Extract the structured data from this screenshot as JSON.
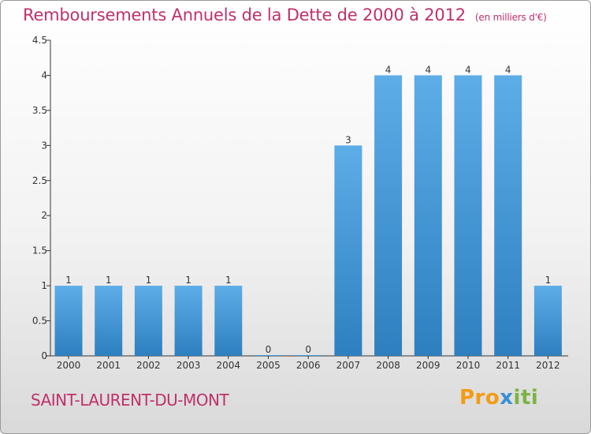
{
  "title": "Remboursements Annuels de la Dette de 2000 à 2012",
  "unit": "(en milliers d'€)",
  "commune": "SAINT-LAURENT-DU-MONT",
  "logo": {
    "parts": [
      "Pro",
      "x",
      "iti"
    ],
    "colors": [
      "#f39c12",
      "#3a8fd6",
      "#7cb342",
      "#e74c3c"
    ]
  },
  "colors": {
    "title": "#c0306b",
    "bar_top": "#5dade8",
    "bar_bottom": "#2d7fbf"
  },
  "chart_data": {
    "type": "bar",
    "categories": [
      "2000",
      "2001",
      "2002",
      "2003",
      "2004",
      "2005",
      "2006",
      "2007",
      "2008",
      "2009",
      "2010",
      "2011",
      "2012"
    ],
    "values": [
      1,
      1,
      1,
      1,
      1,
      0,
      0,
      3,
      4,
      4,
      4,
      4,
      1
    ],
    "data_labels": [
      "1",
      "1",
      "1",
      "1",
      "1",
      "0",
      "0",
      "3",
      "4",
      "4",
      "4",
      "4",
      "1"
    ],
    "title": "Remboursements Annuels de la Dette de 2000 à 2012",
    "ylim": [
      0,
      4.5
    ],
    "yticks": [
      0,
      0.5,
      1,
      1.5,
      2,
      2.5,
      3,
      3.5,
      4,
      4.5
    ],
    "ytick_labels": [
      "0",
      "0.5",
      "1",
      "1.5",
      "2",
      "2.5",
      "3",
      "3.5",
      "4",
      "4.5"
    ],
    "grid": false,
    "legend": "none"
  }
}
